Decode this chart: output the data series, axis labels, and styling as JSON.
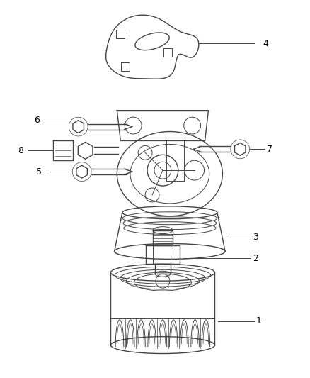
{
  "background_color": "#ffffff",
  "line_color": "#444444",
  "label_color": "#000000",
  "figsize": [
    4.38,
    5.33
  ],
  "dpi": 100
}
